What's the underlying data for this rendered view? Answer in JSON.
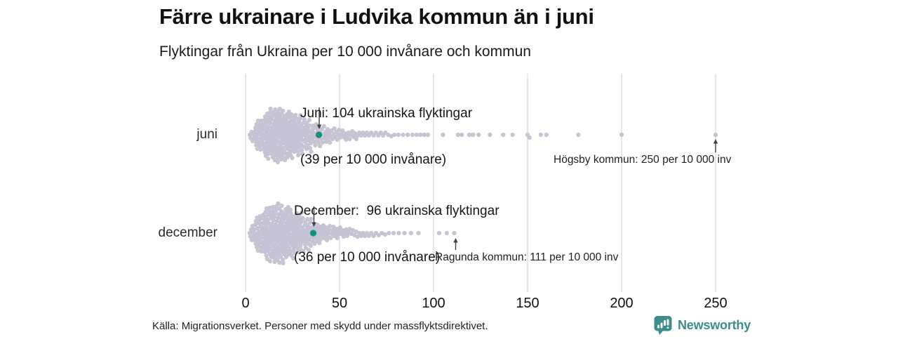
{
  "footer": {
    "source": "Källa: Migrationsverket. Personer med skydd under massflyktsdirektivet."
  },
  "logo": {
    "text": "Newsworthy",
    "color": "#3d8d8a",
    "icon": "bar-chart-speech-bubble"
  },
  "colors": {
    "dot": "#c6c4d4",
    "highlight": "#16917f",
    "grid": "#dadada",
    "arrow": "#404040",
    "text": "#1a1a1a"
  },
  "chart_data": {
    "type": "beeswarm",
    "title": "Färre ukrainare i Ludvika kommun än i juni",
    "subtitle": "Flyktingar från Ukraina per 10 000 invånare och kommun",
    "x_unit": "flyktingar per 10 000 invånare",
    "xlim": [
      0,
      260
    ],
    "x_ticks": [
      "0",
      "50",
      "100",
      "150",
      "200",
      "250"
    ],
    "grid": true,
    "categories": [
      "juni",
      "december"
    ],
    "series": [
      {
        "name": "juni",
        "highlight": {
          "municipality": "Ludvika",
          "refugees": 104,
          "value": 39
        },
        "bins": [
          [
            2,
            5,
            6
          ],
          [
            5,
            10,
            26
          ],
          [
            10,
            15,
            40
          ],
          [
            15,
            20,
            46
          ],
          [
            20,
            25,
            40
          ],
          [
            25,
            30,
            34
          ],
          [
            30,
            35,
            25
          ],
          [
            35,
            40,
            18
          ],
          [
            40,
            45,
            13
          ],
          [
            45,
            50,
            10
          ],
          [
            50,
            55,
            8
          ],
          [
            55,
            60,
            7
          ],
          [
            60,
            65,
            5
          ],
          [
            65,
            70,
            4
          ],
          [
            70,
            75,
            4
          ],
          [
            75,
            80,
            3
          ],
          [
            80,
            85,
            2
          ],
          [
            85,
            90,
            2
          ],
          [
            90,
            96,
            3
          ]
        ],
        "tail_values": [
          97,
          105,
          113,
          115,
          119,
          121,
          124,
          130,
          137,
          142,
          150,
          151,
          157,
          160,
          177,
          200,
          250
        ]
      },
      {
        "name": "december",
        "highlight": {
          "municipality": "Ludvika",
          "refugees": 96,
          "value": 36
        },
        "bins": [
          [
            2,
            5,
            8
          ],
          [
            5,
            10,
            30
          ],
          [
            10,
            15,
            44
          ],
          [
            15,
            20,
            48
          ],
          [
            20,
            25,
            42
          ],
          [
            25,
            30,
            35
          ],
          [
            30,
            35,
            26
          ],
          [
            35,
            40,
            18
          ],
          [
            40,
            45,
            13
          ],
          [
            45,
            50,
            10
          ],
          [
            50,
            55,
            8
          ],
          [
            55,
            60,
            6
          ],
          [
            60,
            65,
            5
          ],
          [
            65,
            70,
            4
          ],
          [
            70,
            75,
            3
          ],
          [
            75,
            80,
            2
          ],
          [
            80,
            86,
            2
          ],
          [
            86,
            94,
            2
          ]
        ],
        "tail_values": [
          103,
          107,
          111
        ]
      }
    ],
    "annotations": {
      "juni_highlight": {
        "line1": "Juni: 104 ukrainska flyktingar",
        "line2": "(39 per 10 000 invånare)",
        "points_to_value": 39,
        "row": "juni"
      },
      "december_highlight": {
        "line1": "December:  96 ukrainska flyktingar",
        "line2": "(36 per 10 000 invånare)",
        "points_to_value": 36,
        "row": "december"
      },
      "hogsby": {
        "text": "Högsby kommun: 250 per 10 000 inv",
        "points_to_value": 250,
        "row": "juni"
      },
      "ragunda": {
        "text": "Ragunda kommun: 111 per 10 000 inv",
        "points_to_value": 111,
        "row": "december"
      }
    }
  }
}
